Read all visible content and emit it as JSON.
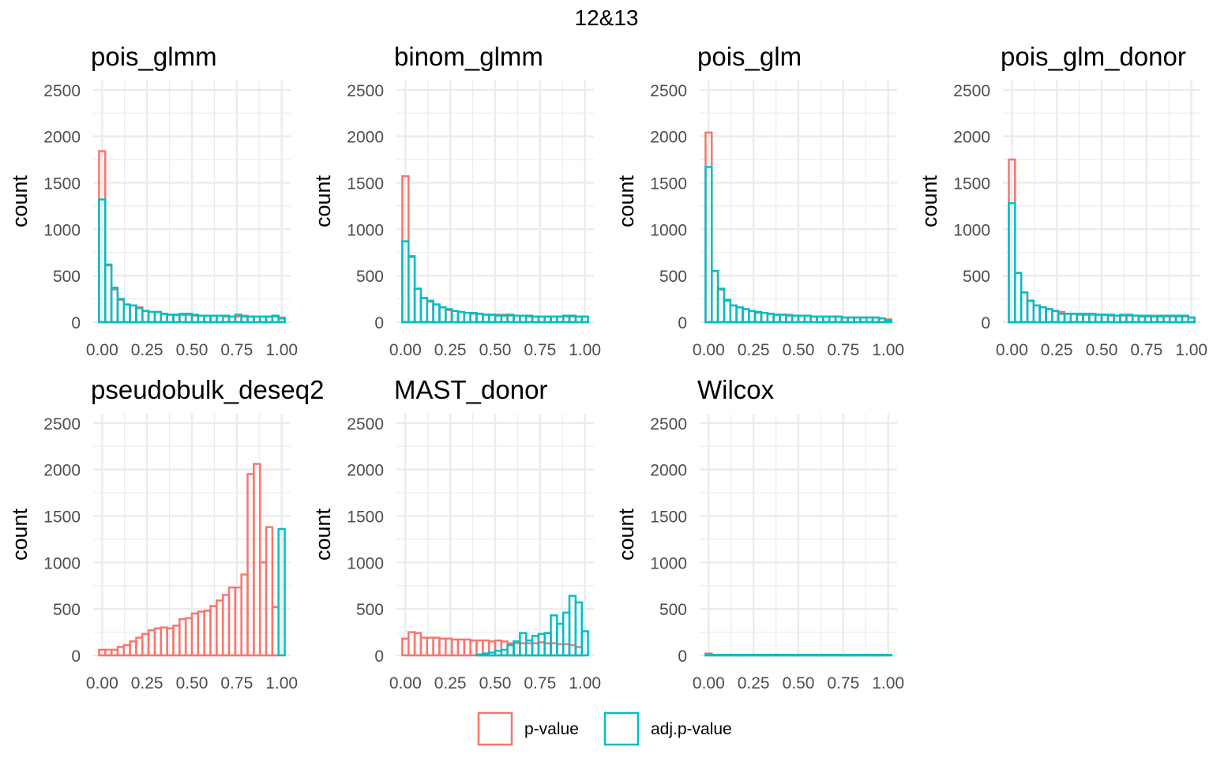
{
  "chart_data": {
    "type": "histogram",
    "title": "12&13",
    "ylabel": "count",
    "xlabel": "",
    "xlim": [
      -0.05,
      1.05
    ],
    "ylim": [
      0,
      2600
    ],
    "x_ticks": [
      0,
      0.25,
      0.5,
      0.75,
      1
    ],
    "x_tick_labels": [
      "0.00",
      "0.25",
      "0.50",
      "0.75",
      "1.00"
    ],
    "y_ticks": [
      0,
      500,
      1000,
      1500,
      2000,
      2500
    ],
    "y_tick_labels": [
      "0",
      "500",
      "1000",
      "1500",
      "2000",
      "2500"
    ],
    "bin_width": 0.0345,
    "bin_centers": [
      0,
      0.0345,
      0.069,
      0.1034,
      0.1379,
      0.1724,
      0.2069,
      0.2414,
      0.2759,
      0.3103,
      0.3448,
      0.3793,
      0.4138,
      0.4483,
      0.4828,
      0.5172,
      0.5517,
      0.5862,
      0.6207,
      0.6552,
      0.6897,
      0.7241,
      0.7586,
      0.7931,
      0.8276,
      0.8621,
      0.8966,
      0.931,
      0.9655,
      1
    ],
    "series_names": [
      "p-value",
      "adj.p-value"
    ],
    "series_colors": [
      "#f8766d",
      "#00bfc4"
    ],
    "panels": [
      {
        "title": "pois_glmm",
        "series": [
          {
            "name": "p-value",
            "values": [
              1840,
              610,
              350,
              240,
              190,
              180,
              160,
              120,
              110,
              110,
              90,
              80,
              80,
              80,
              80,
              70,
              70,
              70,
              70,
              70,
              60,
              60,
              60,
              70,
              60,
              60,
              60,
              60,
              60,
              50
            ]
          },
          {
            "name": "adj.p-value",
            "values": [
              1320,
              620,
              370,
              250,
              190,
              180,
              150,
              120,
              110,
              110,
              90,
              80,
              80,
              90,
              90,
              80,
              70,
              70,
              70,
              70,
              70,
              60,
              80,
              60,
              60,
              60,
              60,
              60,
              70,
              40
            ]
          }
        ]
      },
      {
        "title": "binom_glmm",
        "series": [
          {
            "name": "p-value",
            "values": [
              1570,
              700,
              360,
              260,
              220,
              190,
              160,
              130,
              120,
              110,
              100,
              90,
              90,
              80,
              80,
              80,
              80,
              70,
              70,
              70,
              60,
              60,
              60,
              60,
              60,
              60,
              60,
              60,
              60,
              60
            ]
          },
          {
            "name": "adj.p-value",
            "values": [
              870,
              710,
              360,
              260,
              230,
              190,
              160,
              140,
              120,
              110,
              100,
              100,
              90,
              80,
              80,
              70,
              70,
              80,
              70,
              70,
              70,
              60,
              60,
              60,
              60,
              60,
              70,
              70,
              60,
              60
            ]
          }
        ]
      },
      {
        "title": "pois_glm",
        "series": [
          {
            "name": "p-value",
            "values": [
              2040,
              550,
              350,
              230,
              180,
              160,
              140,
              120,
              100,
              100,
              90,
              80,
              80,
              80,
              70,
              70,
              70,
              60,
              60,
              60,
              60,
              60,
              50,
              50,
              50,
              50,
              50,
              50,
              40,
              30
            ]
          },
          {
            "name": "adj.p-value",
            "values": [
              1670,
              550,
              360,
              240,
              180,
              160,
              140,
              120,
              110,
              100,
              90,
              80,
              80,
              70,
              70,
              70,
              70,
              60,
              60,
              60,
              60,
              60,
              50,
              50,
              50,
              50,
              50,
              50,
              40,
              20
            ]
          }
        ]
      },
      {
        "title": "pois_glm_donor",
        "series": [
          {
            "name": "p-value",
            "values": [
              1750,
              530,
              320,
              230,
              180,
              160,
              140,
              120,
              110,
              90,
              90,
              80,
              80,
              80,
              80,
              80,
              70,
              70,
              70,
              70,
              70,
              60,
              60,
              70,
              60,
              60,
              60,
              60,
              60,
              50
            ]
          },
          {
            "name": "adj.p-value",
            "values": [
              1280,
              530,
              320,
              230,
              180,
              160,
              140,
              120,
              90,
              90,
              90,
              90,
              90,
              90,
              80,
              80,
              80,
              70,
              80,
              80,
              70,
              70,
              70,
              60,
              70,
              70,
              70,
              70,
              70,
              50
            ]
          }
        ]
      },
      {
        "title": "pseudobulk_deseq2",
        "series": [
          {
            "name": "p-value",
            "values": [
              60,
              60,
              60,
              90,
              110,
              150,
              190,
              230,
              270,
              290,
              300,
              290,
              320,
              390,
              400,
              450,
              470,
              480,
              530,
              590,
              650,
              730,
              730,
              870,
              1950,
              2060,
              1000,
              1380,
              520,
              0
            ]
          },
          {
            "name": "adj.p-value",
            "values": [
              0,
              0,
              0,
              0,
              0,
              0,
              0,
              0,
              0,
              0,
              0,
              0,
              0,
              0,
              0,
              0,
              0,
              0,
              0,
              0,
              0,
              0,
              0,
              0,
              0,
              0,
              0,
              0,
              0,
              1360
            ]
          }
        ]
      },
      {
        "title": "MAST_donor",
        "series": [
          {
            "name": "p-value",
            "values": [
              180,
              250,
              240,
              190,
              190,
              190,
              180,
              180,
              170,
              170,
              170,
              160,
              160,
              160,
              150,
              160,
              150,
              130,
              130,
              130,
              130,
              130,
              140,
              130,
              130,
              120,
              120,
              110,
              90,
              0
            ]
          },
          {
            "name": "adj.p-value",
            "values": [
              0,
              0,
              0,
              0,
              0,
              0,
              0,
              0,
              0,
              0,
              0,
              0,
              10,
              20,
              30,
              50,
              60,
              110,
              150,
              240,
              160,
              210,
              230,
              240,
              430,
              340,
              460,
              640,
              570,
              260
            ]
          }
        ]
      },
      {
        "title": "Wilcox",
        "series": [
          {
            "name": "p-value",
            "values": [
              20,
              5,
              5,
              5,
              5,
              5,
              5,
              5,
              5,
              5,
              5,
              5,
              5,
              5,
              5,
              5,
              5,
              5,
              5,
              5,
              5,
              5,
              5,
              5,
              5,
              5,
              5,
              5,
              5,
              5
            ]
          },
          {
            "name": "adj.p-value",
            "values": [
              10,
              5,
              5,
              5,
              5,
              5,
              5,
              5,
              5,
              5,
              5,
              5,
              5,
              5,
              5,
              5,
              5,
              5,
              5,
              5,
              5,
              5,
              5,
              5,
              5,
              5,
              5,
              5,
              5,
              5
            ]
          }
        ]
      }
    ],
    "legend": {
      "position": "bottom",
      "entries": [
        "p-value",
        "adj.p-value"
      ]
    }
  }
}
